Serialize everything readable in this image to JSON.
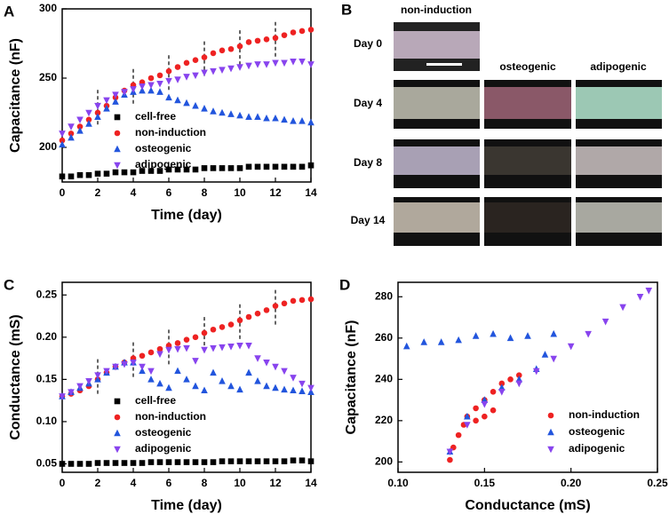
{
  "chart_data": [
    {
      "type": "line",
      "panel_label": "A",
      "xlabel": "Time (day)",
      "ylabel": "Capacitance (nF)",
      "x": [
        0,
        0.5,
        1,
        1.5,
        2,
        2.5,
        3,
        3.5,
        4,
        4.5,
        5,
        5.5,
        6,
        6.5,
        7,
        7.5,
        8,
        8.5,
        9,
        9.5,
        10,
        10.5,
        11,
        11.5,
        12,
        12.5,
        13,
        13.5,
        14
      ],
      "xlim": [
        0,
        14
      ],
      "xticks": [
        0,
        2,
        4,
        6,
        8,
        10,
        12,
        14
      ],
      "ylim": [
        175,
        300
      ],
      "yticks": [
        200,
        250,
        300
      ],
      "media_changes": [
        2,
        4,
        6,
        8,
        10,
        12
      ],
      "series": [
        {
          "name": "cell-free",
          "color": "#000000",
          "marker": "square",
          "values": [
            179,
            179,
            180,
            180,
            181,
            181,
            182,
            182,
            182,
            183,
            183,
            183,
            184,
            184,
            184,
            184,
            185,
            185,
            185,
            185,
            185,
            186,
            186,
            186,
            186,
            186,
            186,
            186,
            187
          ]
        },
        {
          "name": "non-induction",
          "color": "#ee2222",
          "marker": "circle",
          "values": [
            205,
            210,
            215,
            220,
            225,
            230,
            236,
            241,
            245,
            247,
            250,
            252,
            255,
            258,
            261,
            263,
            265,
            268,
            270,
            271,
            273,
            276,
            277,
            278,
            279,
            281,
            283,
            284,
            285
          ]
        },
        {
          "name": "osteogenic",
          "color": "#2255dd",
          "marker": "triangle-up",
          "values": [
            202,
            207,
            212,
            217,
            222,
            228,
            233,
            238,
            240,
            241,
            241,
            240,
            236,
            234,
            232,
            230,
            228,
            226,
            225,
            224,
            223,
            222,
            222,
            221,
            221,
            220,
            219,
            219,
            218
          ]
        },
        {
          "name": "adipogenic",
          "color": "#8844ee",
          "marker": "triangle-down",
          "values": [
            210,
            215,
            220,
            225,
            230,
            234,
            238,
            240,
            242,
            244,
            245,
            246,
            248,
            249,
            251,
            252,
            254,
            255,
            256,
            257,
            258,
            259,
            260,
            260,
            261,
            261,
            262,
            262,
            260
          ]
        }
      ]
    },
    {
      "type": "line",
      "panel_label": "C",
      "xlabel": "Time (day)",
      "ylabel": "Conductance (mS)",
      "x": [
        0,
        0.5,
        1,
        1.5,
        2,
        2.5,
        3,
        3.5,
        4,
        4.5,
        5,
        5.5,
        6,
        6.5,
        7,
        7.5,
        8,
        8.5,
        9,
        9.5,
        10,
        10.5,
        11,
        11.5,
        12,
        12.5,
        13,
        13.5,
        14
      ],
      "xlim": [
        0,
        14
      ],
      "xticks": [
        0,
        2,
        4,
        6,
        8,
        10,
        12,
        14
      ],
      "ylim": [
        0.04,
        0.265
      ],
      "yticks": [
        0.05,
        {
          "value": 0.1,
          "label": "0.10"
        },
        0.15,
        {
          "value": 0.2,
          "label": "0.20"
        },
        0.25
      ],
      "media_changes": [
        2,
        4,
        6,
        8,
        10,
        12
      ],
      "series": [
        {
          "name": "cell-free",
          "color": "#000000",
          "marker": "square",
          "values": [
            0.05,
            0.05,
            0.05,
            0.05,
            0.051,
            0.051,
            0.051,
            0.051,
            0.051,
            0.051,
            0.052,
            0.052,
            0.052,
            0.052,
            0.052,
            0.052,
            0.052,
            0.052,
            0.053,
            0.053,
            0.053,
            0.053,
            0.053,
            0.053,
            0.053,
            0.053,
            0.054,
            0.054,
            0.053
          ]
        },
        {
          "name": "non-induction",
          "color": "#ee2222",
          "marker": "circle",
          "values": [
            0.13,
            0.133,
            0.137,
            0.142,
            0.15,
            0.158,
            0.165,
            0.17,
            0.175,
            0.178,
            0.182,
            0.186,
            0.19,
            0.193,
            0.197,
            0.2,
            0.205,
            0.209,
            0.212,
            0.215,
            0.22,
            0.224,
            0.228,
            0.232,
            0.237,
            0.24,
            0.243,
            0.244,
            0.245
          ]
        },
        {
          "name": "osteogenic",
          "color": "#2255dd",
          "marker": "triangle-up",
          "values": [
            0.13,
            0.135,
            0.14,
            0.145,
            0.15,
            0.158,
            0.165,
            0.17,
            0.17,
            0.16,
            0.15,
            0.145,
            0.14,
            0.16,
            0.15,
            0.142,
            0.137,
            0.158,
            0.148,
            0.142,
            0.138,
            0.158,
            0.148,
            0.142,
            0.14,
            0.138,
            0.137,
            0.136,
            0.135
          ]
        },
        {
          "name": "adipogenic",
          "color": "#8844ee",
          "marker": "triangle-down",
          "values": [
            0.13,
            0.135,
            0.142,
            0.148,
            0.155,
            0.16,
            0.165,
            0.168,
            0.17,
            0.165,
            0.16,
            0.18,
            0.185,
            0.186,
            0.187,
            0.172,
            0.185,
            0.187,
            0.188,
            0.189,
            0.19,
            0.19,
            0.175,
            0.17,
            0.165,
            0.16,
            0.152,
            0.145,
            0.14
          ]
        }
      ]
    },
    {
      "type": "scatter",
      "panel_label": "D",
      "xlabel": "Conductance (mS)",
      "ylabel": "Capacitance (nF)",
      "xlim": [
        0.1,
        0.25
      ],
      "xticks": [
        {
          "value": 0.1,
          "label": "0.10"
        },
        0.15,
        {
          "value": 0.2,
          "label": "0.20"
        },
        0.25
      ],
      "ylim": [
        195,
        287
      ],
      "yticks": [
        200,
        220,
        240,
        260,
        280
      ],
      "series": [
        {
          "name": "non-induction",
          "color": "#ee2222",
          "marker": "circle",
          "x": [
            0.13,
            0.132,
            0.135,
            0.138,
            0.14,
            0.145,
            0.15,
            0.155,
            0.16,
            0.165,
            0.17,
            0.145,
            0.15,
            0.155
          ],
          "values": [
            201,
            207,
            213,
            218,
            222,
            226,
            230,
            234,
            238,
            240,
            242,
            220,
            222,
            225
          ]
        },
        {
          "name": "osteogenic",
          "color": "#2255dd",
          "marker": "triangle-up",
          "x": [
            0.105,
            0.115,
            0.125,
            0.135,
            0.145,
            0.155,
            0.165,
            0.175,
            0.13,
            0.14,
            0.15,
            0.16,
            0.17,
            0.18,
            0.185,
            0.19
          ],
          "values": [
            256,
            258,
            258,
            259,
            261,
            262,
            260,
            261,
            205,
            222,
            230,
            236,
            240,
            245,
            252,
            262
          ]
        },
        {
          "name": "adipogenic",
          "color": "#8844ee",
          "marker": "triangle-down",
          "x": [
            0.13,
            0.14,
            0.15,
            0.16,
            0.17,
            0.18,
            0.19,
            0.2,
            0.21,
            0.22,
            0.23,
            0.24,
            0.245
          ],
          "values": [
            205,
            218,
            228,
            234,
            238,
            244,
            250,
            256,
            262,
            268,
            275,
            280,
            283
          ]
        }
      ]
    }
  ],
  "micrographs": {
    "panel_label": "B",
    "columns": [
      "non-induction",
      "osteogenic",
      "adipogenic"
    ],
    "rows": [
      "Day 0",
      "Day 4",
      "Day 8",
      "Day 14"
    ]
  }
}
